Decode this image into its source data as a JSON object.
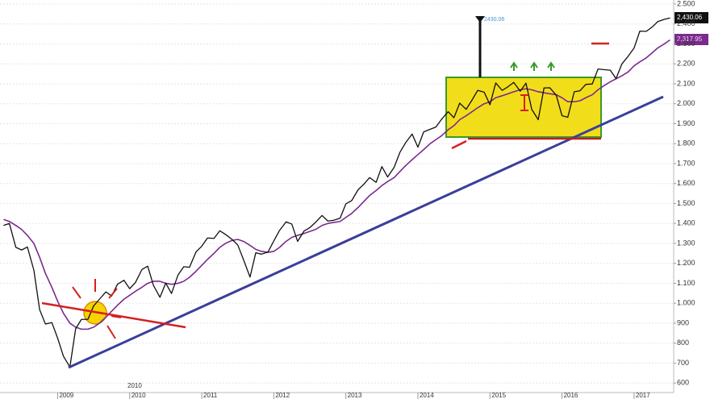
{
  "chart_data": {
    "type": "line",
    "x": [
      2008.25,
      2008.33,
      2008.42,
      2008.5,
      2008.58,
      2008.67,
      2008.75,
      2008.83,
      2008.92,
      2009,
      2009.08,
      2009.17,
      2009.25,
      2009.33,
      2009.42,
      2009.5,
      2009.58,
      2009.67,
      2009.75,
      2009.83,
      2009.92,
      2010,
      2010.08,
      2010.17,
      2010.25,
      2010.33,
      2010.42,
      2010.5,
      2010.58,
      2010.67,
      2010.75,
      2010.83,
      2010.92,
      2011,
      2011.08,
      2011.17,
      2011.25,
      2011.33,
      2011.42,
      2011.5,
      2011.58,
      2011.67,
      2011.75,
      2011.83,
      2011.92,
      2012,
      2012.08,
      2012.17,
      2012.25,
      2012.33,
      2012.42,
      2012.5,
      2012.58,
      2012.67,
      2012.75,
      2012.83,
      2012.92,
      2013,
      2013.08,
      2013.17,
      2013.25,
      2013.33,
      2013.42,
      2013.5,
      2013.58,
      2013.67,
      2013.75,
      2013.83,
      2013.92,
      2014,
      2014.08,
      2014.17,
      2014.25,
      2014.33,
      2014.42,
      2014.5,
      2014.58,
      2014.67,
      2014.75,
      2014.83,
      2014.92,
      2015,
      2015.08,
      2015.17,
      2015.25,
      2015.33,
      2015.42,
      2015.5,
      2015.58,
      2015.67,
      2015.75,
      2015.83,
      2015.92,
      2016,
      2016.08,
      2016.17,
      2016.25,
      2016.33,
      2016.42,
      2016.5,
      2016.58,
      2016.67,
      2016.75,
      2016.83,
      2016.92,
      2017,
      2017.08,
      2017.17,
      2017.25,
      2017.33,
      2017.42,
      2017.5
    ],
    "series": [
      {
        "color": "#111111",
        "values": [
          1390,
          1400,
          1280,
          1267,
          1282,
          1166,
          968,
          896,
          903,
          825,
          735,
          680,
          872,
          919,
          919,
          987,
          1020,
          1057,
          1036,
          1095,
          1115,
          1073,
          1104,
          1169,
          1186,
          1089,
          1030,
          1101,
          1049,
          1141,
          1183,
          1180,
          1257,
          1286,
          1327,
          1325,
          1363,
          1345,
          1320,
          1292,
          1218,
          1131,
          1253,
          1246,
          1257,
          1312,
          1365,
          1408,
          1397,
          1310,
          1362,
          1379,
          1406,
          1440,
          1412,
          1416,
          1426,
          1498,
          1514,
          1569,
          1597,
          1630,
          1606,
          1685,
          1633,
          1681,
          1756,
          1805,
          1848,
          1782,
          1859,
          1872,
          1883,
          1923,
          1960,
          1930,
          2003,
          1972,
          2018,
          2067,
          2058,
          1995,
          2104,
          2067,
          2085,
          2107,
          2063,
          2103,
          1972,
          1920,
          2079,
          2080,
          2043,
          1940,
          1932,
          2060,
          2065,
          2097,
          2099,
          2174,
          2171,
          2168,
          2126,
          2199,
          2239,
          2279,
          2364,
          2363,
          2384,
          2412,
          2423,
          2430
        ]
      },
      {
        "color": "#7b2a8f",
        "values": [
          1420,
          1410,
          1390,
          1370,
          1340,
          1300,
          1230,
          1150,
          1080,
          1010,
          950,
          900,
          880,
          870,
          870,
          880,
          900,
          930,
          960,
          990,
          1020,
          1040,
          1060,
          1080,
          1100,
          1110,
          1110,
          1100,
          1095,
          1100,
          1110,
          1130,
          1160,
          1190,
          1220,
          1250,
          1280,
          1300,
          1315,
          1320,
          1310,
          1290,
          1270,
          1260,
          1255,
          1260,
          1280,
          1310,
          1330,
          1340,
          1350,
          1360,
          1370,
          1390,
          1400,
          1405,
          1410,
          1430,
          1450,
          1480,
          1510,
          1540,
          1565,
          1590,
          1610,
          1630,
          1660,
          1690,
          1720,
          1745,
          1770,
          1800,
          1820,
          1840,
          1870,
          1890,
          1920,
          1940,
          1960,
          1980,
          2000,
          2010,
          2030,
          2040,
          2050,
          2060,
          2070,
          2075,
          2070,
          2060,
          2055,
          2050,
          2045,
          2030,
          2010,
          2010,
          2015,
          2030,
          2045,
          2070,
          2090,
          2110,
          2125,
          2140,
          2160,
          2190,
          2210,
          2230,
          2255,
          2280,
          2300,
          2320
        ]
      }
    ],
    "xlim": [
      2008.2,
      2017.55
    ],
    "xticks": [
      2009,
      2010,
      2011,
      2012,
      2013,
      2014,
      2015,
      2016,
      2017
    ],
    "ylim": [
      520,
      2520
    ],
    "yticks": [
      600,
      700,
      800,
      900,
      {
        "value": 1000,
        "label": "1.000"
      },
      {
        "value": 1100,
        "label": "1.100"
      },
      {
        "value": 1200,
        "label": "1.200"
      },
      {
        "value": 1300,
        "label": "1.300"
      },
      {
        "value": 1400,
        "label": "1.400"
      },
      {
        "value": 1500,
        "label": "1.500"
      },
      {
        "value": 1600,
        "label": "1.600"
      },
      {
        "value": 1700,
        "label": "1.700"
      },
      {
        "value": 1800,
        "label": "1.800"
      },
      {
        "value": 1900,
        "label": "1.900"
      },
      {
        "value": 2000,
        "label": "2.000"
      },
      {
        "value": 2100,
        "label": "2.100"
      },
      {
        "value": 2200,
        "label": "2.200"
      },
      {
        "value": 2300,
        "label": "2.300"
      },
      {
        "value": 2400,
        "label": "2.400"
      },
      {
        "value": 2500,
        "label": "2.500"
      }
    ],
    "grid": true,
    "annotations": [
      "2430.06",
      "2,430.06",
      "2,317.95",
      "2010"
    ]
  }
}
